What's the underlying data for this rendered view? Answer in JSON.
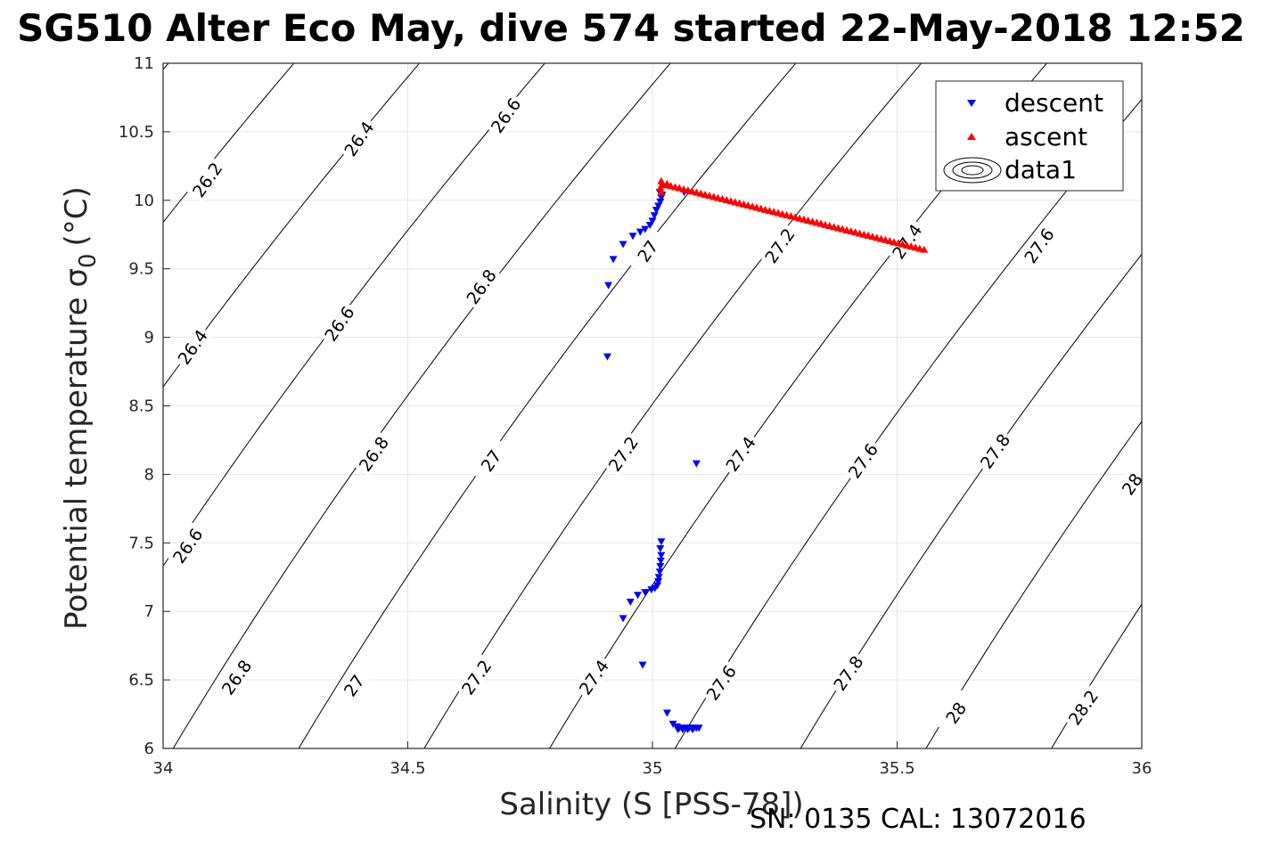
{
  "chart_data": {
    "type": "scatter",
    "title": "SG510 Alter Eco May, dive 574 started 22-May-2018 12:52",
    "xlabel": "Salinity (S [PSS-78])",
    "ylabel": "Potential temperature σ",
    "ylabel_sub": "0",
    "ylabel_unit": "(°C)",
    "footer": "SN: 0135  CAL: 13072016",
    "xlim": [
      34,
      36
    ],
    "ylim": [
      6,
      11
    ],
    "xticks": [
      34,
      34.5,
      35,
      35.5,
      36
    ],
    "yticks": [
      6,
      6.5,
      7,
      7.5,
      8,
      8.5,
      9,
      9.5,
      10,
      10.5,
      11
    ],
    "grid": true,
    "legend_position": "top-right",
    "legend": [
      {
        "label": "descent",
        "marker": "triangle-down",
        "color": "#0000ff"
      },
      {
        "label": "ascent",
        "marker": "triangle-up",
        "color": "#ff0000"
      },
      {
        "label": "data1",
        "marker": "contour",
        "color": "#000000"
      }
    ],
    "contour_levels": [
      "26.2",
      "26.4",
      "26.6",
      "26.8",
      "27",
      "27.2",
      "27.4",
      "27.6",
      "27.8",
      "28",
      "28.2"
    ],
    "contour_labels": [
      {
        "text": "26.2",
        "s": 34.09,
        "t": 10.15
      },
      {
        "text": "26.4",
        "s": 34.4,
        "t": 10.45
      },
      {
        "text": "26.6",
        "s": 34.7,
        "t": 10.62
      },
      {
        "text": "26.4",
        "s": 34.06,
        "t": 8.93
      },
      {
        "text": "26.6",
        "s": 34.36,
        "t": 9.1
      },
      {
        "text": "26.8",
        "s": 34.65,
        "t": 9.37
      },
      {
        "text": "27",
        "s": 34.99,
        "t": 9.63
      },
      {
        "text": "27.2",
        "s": 35.26,
        "t": 9.67
      },
      {
        "text": "27.4",
        "s": 35.52,
        "t": 9.7
      },
      {
        "text": "27.6",
        "s": 35.79,
        "t": 9.67
      },
      {
        "text": "26.6",
        "s": 34.05,
        "t": 7.48
      },
      {
        "text": "26.8",
        "s": 34.43,
        "t": 8.15
      },
      {
        "text": "27",
        "s": 34.67,
        "t": 8.1
      },
      {
        "text": "27.2",
        "s": 34.94,
        "t": 8.15
      },
      {
        "text": "27.4",
        "s": 35.18,
        "t": 8.15
      },
      {
        "text": "27.6",
        "s": 35.43,
        "t": 8.1
      },
      {
        "text": "27.8",
        "s": 35.7,
        "t": 8.17
      },
      {
        "text": "28",
        "s": 35.98,
        "t": 7.93
      },
      {
        "text": "26.8",
        "s": 34.15,
        "t": 6.52
      },
      {
        "text": "27",
        "s": 34.39,
        "t": 6.46
      },
      {
        "text": "27.2",
        "s": 34.64,
        "t": 6.52
      },
      {
        "text": "27.4",
        "s": 34.88,
        "t": 6.52
      },
      {
        "text": "27.6",
        "s": 35.14,
        "t": 6.48
      },
      {
        "text": "27.8",
        "s": 35.4,
        "t": 6.55
      },
      {
        "text": "28",
        "s": 35.62,
        "t": 6.26
      },
      {
        "text": "28.2",
        "s": 35.88,
        "t": 6.3
      }
    ],
    "series": [
      {
        "name": "descent",
        "marker": "triangle-down",
        "color": "#0000ff",
        "points": [
          [
            35.015,
            10.06
          ],
          [
            35.02,
            10.04
          ],
          [
            35.018,
            10.02
          ],
          [
            35.016,
            9.99
          ],
          [
            35.012,
            9.96
          ],
          [
            35.008,
            9.93
          ],
          [
            35.004,
            9.89
          ],
          [
            35.0,
            9.85
          ],
          [
            34.995,
            9.82
          ],
          [
            34.985,
            9.79
          ],
          [
            34.975,
            9.77
          ],
          [
            34.96,
            9.74
          ],
          [
            34.94,
            9.68
          ],
          [
            34.92,
            9.57
          ],
          [
            34.91,
            9.38
          ],
          [
            34.908,
            8.86
          ],
          [
            35.065,
            10.06
          ],
          [
            35.09,
            8.08
          ],
          [
            35.018,
            7.51
          ],
          [
            35.016,
            7.46
          ],
          [
            35.018,
            7.41
          ],
          [
            35.017,
            7.37
          ],
          [
            35.016,
            7.33
          ],
          [
            35.015,
            7.29
          ],
          [
            35.013,
            7.25
          ],
          [
            35.012,
            7.22
          ],
          [
            35.01,
            7.19
          ],
          [
            35.005,
            7.17
          ],
          [
            34.998,
            7.16
          ],
          [
            34.985,
            7.14
          ],
          [
            34.97,
            7.12
          ],
          [
            34.955,
            7.07
          ],
          [
            34.94,
            6.95
          ],
          [
            34.98,
            6.61
          ],
          [
            35.03,
            6.26
          ],
          [
            35.042,
            6.18
          ],
          [
            35.05,
            6.16
          ],
          [
            35.055,
            6.15
          ],
          [
            35.06,
            6.15
          ],
          [
            35.065,
            6.15
          ],
          [
            35.07,
            6.15
          ],
          [
            35.075,
            6.15
          ],
          [
            35.08,
            6.15
          ],
          [
            35.085,
            6.15
          ],
          [
            35.09,
            6.15
          ],
          [
            35.095,
            6.15
          ],
          [
            35.052,
            6.14
          ],
          [
            35.062,
            6.14
          ],
          [
            35.072,
            6.14
          ],
          [
            35.082,
            6.14
          ]
        ]
      },
      {
        "name": "ascent",
        "marker": "triangle-up",
        "color": "#ff0000",
        "line": {
          "from": [
            35.02,
            10.12
          ],
          "to": [
            35.555,
            9.64
          ],
          "count": 62
        },
        "extra_points": [
          [
            35.018,
            10.14
          ],
          [
            35.016,
            10.09
          ],
          [
            35.018,
            10.06
          ],
          [
            35.022,
            10.11
          ],
          [
            35.03,
            10.12
          ]
        ]
      }
    ]
  }
}
